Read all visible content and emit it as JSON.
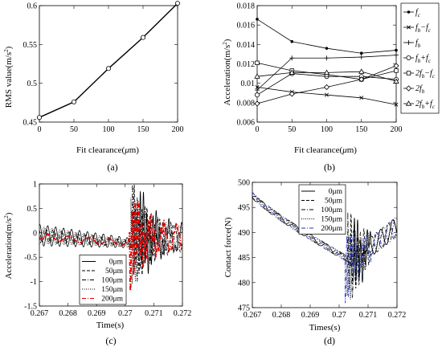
{
  "chart_data": [
    {
      "panel": "(a)",
      "type": "line",
      "xlabel": "Fit clearance(μm)",
      "ylabel": "RMS value(m/s²)",
      "xlim": [
        0,
        200
      ],
      "ylim": [
        0.45,
        0.6
      ],
      "xticks": [
        0,
        50,
        100,
        150,
        200
      ],
      "yticks": [
        0.45,
        0.5,
        0.55,
        0.6
      ],
      "x": [
        0,
        50,
        100,
        150,
        200
      ],
      "series": [
        {
          "values": [
            0.456,
            0.476,
            0.519,
            0.559,
            0.603
          ],
          "marker": "o",
          "color": "#000000"
        }
      ]
    },
    {
      "panel": "(b)",
      "type": "line",
      "xlabel": "Fit clearance(μm)",
      "ylabel": "Acceleration(m/s²)",
      "xlim": [
        0,
        200
      ],
      "ylim": [
        0.006,
        0.018
      ],
      "xticks": [
        0,
        50,
        100,
        150,
        200
      ],
      "yticks": [
        0.006,
        0.008,
        0.01,
        0.012,
        0.014,
        0.016,
        0.018
      ],
      "x": [
        0,
        50,
        100,
        150,
        200
      ],
      "legend_position": "right-outside",
      "series": [
        {
          "name": "fc",
          "legend": [
            "f",
            "c",
            ""
          ],
          "marker": "dot",
          "values": [
            0.0166,
            0.0143,
            0.0136,
            0.0131,
            0.0134
          ]
        },
        {
          "name": "fb−fc",
          "legend": [
            "f",
            "b",
            "−f",
            "c"
          ],
          "marker": "x",
          "values": [
            0.0096,
            0.0091,
            0.0088,
            0.0085,
            0.0078
          ]
        },
        {
          "name": "fb",
          "legend": [
            "f",
            "b",
            ""
          ],
          "marker": "+",
          "values": [
            0.0093,
            0.0126,
            0.0126,
            0.0127,
            0.0129
          ]
        },
        {
          "name": "fb+fc",
          "legend": [
            "f",
            "b",
            "+f",
            "c"
          ],
          "marker": "o",
          "values": [
            0.0088,
            0.011,
            0.0107,
            0.0107,
            0.0104
          ]
        },
        {
          "name": "2fb−fc",
          "legend": [
            "2f",
            "b",
            "−f",
            "c"
          ],
          "marker": "square",
          "values": [
            0.0121,
            0.0113,
            0.0109,
            0.0104,
            0.0113
          ]
        },
        {
          "name": "2fb",
          "legend": [
            "2f",
            "b",
            ""
          ],
          "marker": "diamond",
          "values": [
            0.0079,
            0.0089,
            0.0096,
            0.0104,
            0.0118
          ]
        },
        {
          "name": "2fb+fc",
          "legend": [
            "2f",
            "b",
            "+f",
            "c"
          ],
          "marker": "triangle",
          "values": [
            0.0107,
            0.0111,
            0.0111,
            0.0112,
            0.0102
          ]
        }
      ]
    },
    {
      "panel": "(c)",
      "type": "line",
      "xlabel": "Time(s)",
      "ylabel": "Acceleration(m/s²)",
      "xlim": [
        0.267,
        0.272
      ],
      "ylim": [
        -1.5,
        1
      ],
      "xticks": [
        0.267,
        0.268,
        0.269,
        0.27,
        0.271,
        0.272
      ],
      "yticks": [
        -1.5,
        -1,
        -0.5,
        0,
        0.5,
        1
      ],
      "legend_position": "bottom-center",
      "series": [
        {
          "name": "0μm",
          "label": "0μm",
          "style": "solid",
          "color": "#000000",
          "impact_time": 0.2705
        },
        {
          "name": "50μm",
          "label": "50μm",
          "style": "dashed",
          "color": "#000000",
          "impact_time": 0.2703
        },
        {
          "name": "100μm",
          "label": "100μm",
          "style": "dashdot",
          "color": "#000000",
          "impact_time": 0.27025
        },
        {
          "name": "150μm",
          "label": "150μm",
          "style": "dotted",
          "color": "#000000",
          "impact_time": 0.2702
        },
        {
          "name": "200μm",
          "label": "200μm",
          "style": "dashdot",
          "color": "#e00000",
          "impact_time": 0.27015
        }
      ]
    },
    {
      "panel": "(d)",
      "type": "line",
      "xlabel": "Times(s)",
      "ylabel": "Contact force(N)",
      "xlim": [
        0.267,
        0.272
      ],
      "ylim": [
        475,
        500
      ],
      "xticks": [
        0.267,
        0.268,
        0.269,
        0.27,
        0.271,
        0.272
      ],
      "yticks": [
        475,
        480,
        485,
        490,
        495,
        500
      ],
      "legend_position": "top-center",
      "series": [
        {
          "name": "0μm",
          "label": "0μm",
          "style": "solid",
          "color": "#000000",
          "impact_time": 0.2705
        },
        {
          "name": "50μm",
          "label": "50μm",
          "style": "dashed",
          "color": "#000000",
          "impact_time": 0.2704
        },
        {
          "name": "100μm",
          "label": "100μm",
          "style": "dashdot",
          "color": "#000000",
          "impact_time": 0.2703
        },
        {
          "name": "150μm",
          "label": "150μm",
          "style": "dotted",
          "color": "#000000",
          "impact_time": 0.27025
        },
        {
          "name": "200μm",
          "label": "200μm",
          "style": "dashdot",
          "color": "#1f2fbf",
          "impact_time": 0.2702
        }
      ]
    }
  ],
  "captions": {
    "a": "(a)",
    "b": "(b)",
    "c": "(c)",
    "d": "(d)"
  },
  "labels": {
    "xlabel_ab": "Fit clearance(",
    "mu": "μ",
    "xlabel_ab_tail": "m)",
    "ylabel_a": "RMS value(m/s",
    "ylabel_accel": "Acceleration(m/s",
    "sup2": "2",
    "close_paren": ")",
    "xlabel_c": "Time(s)",
    "xlabel_d": "Times(s)",
    "ylabel_d": "Contact force(N)"
  }
}
